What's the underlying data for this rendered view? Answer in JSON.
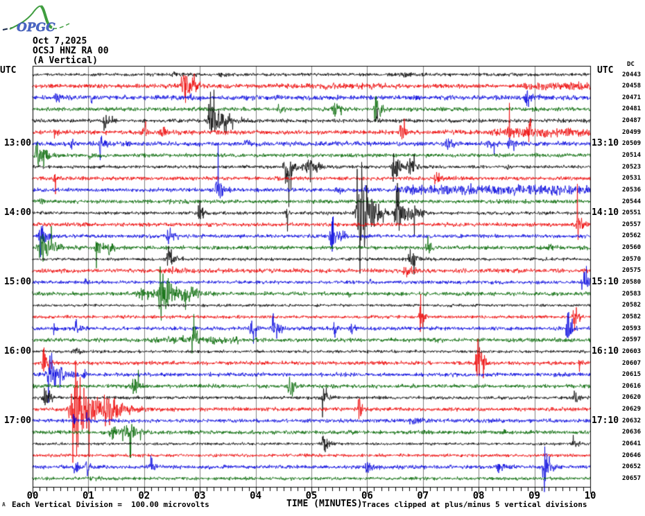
{
  "header": {
    "logo": "OPGC",
    "date": "Oct 7,2025",
    "station": "OCSJ HNZ RA 00",
    "component": "(A Vertical)"
  },
  "axis": {
    "utc_left": "UTC",
    "utc_right": "UTC",
    "dc_header": "DC",
    "xlabel": "TIME (MINUTES)",
    "x_tick_labels": [
      "00",
      "01",
      "02",
      "03",
      "04",
      "05",
      "06",
      "07",
      "08",
      "09",
      "10"
    ],
    "footer_left": "Each Vertical Division =  100.00 microvolts",
    "footer_right": "Traces clipped at plus/minus 5 vertical divisions",
    "corner_mark": "A"
  },
  "left_time_labels": [
    {
      "row": 6,
      "label": "13:00"
    },
    {
      "row": 12,
      "label": "14:00"
    },
    {
      "row": 18,
      "label": "15:00"
    },
    {
      "row": 24,
      "label": "16:00"
    },
    {
      "row": 30,
      "label": "17:00"
    }
  ],
  "right_time_labels": [
    {
      "row": 6,
      "label": "13:10"
    },
    {
      "row": 12,
      "label": "14:10"
    },
    {
      "row": 18,
      "label": "15:10"
    },
    {
      "row": 24,
      "label": "16:10"
    },
    {
      "row": 30,
      "label": "17:10"
    }
  ],
  "chart_data": {
    "type": "line",
    "subtype": "helicorder-seismogram",
    "title": "OCSJ HNZ RA 00 (A Vertical) Oct 7,2025",
    "xlabel": "TIME (MINUTES)",
    "x_range_minutes": [
      0,
      10
    ],
    "row_duration_minutes": 10,
    "minutes_per_gridline": 1,
    "minor_ticks_per_minute": 8,
    "rows_total": 36,
    "first_row_start_utc": "12:00",
    "clip_divisions": 5,
    "microvolts_per_division": 100.0,
    "colors": {
      "black": "#000000",
      "red": "#ee0000",
      "blue": "#0000dd",
      "green": "#006600",
      "grid": "#808080"
    },
    "notes": "events: t = minute of onset, a = peak amplitude (px), w = decay width (min); bands = elevated background noise spans",
    "rows": [
      {
        "start": "12:00",
        "end": "12:10",
        "color": "black",
        "dc": 20443,
        "noise": 1.4,
        "events": [
          {
            "t": 2.55,
            "a": 4,
            "w": 0.25
          },
          {
            "t": 3.4,
            "a": 3,
            "w": 0.2
          },
          {
            "t": 6.7,
            "a": 3,
            "w": 0.3
          }
        ],
        "bands": []
      },
      {
        "start": "12:10",
        "end": "12:20",
        "color": "red",
        "dc": 20458,
        "noise": 1.9,
        "events": [
          {
            "t": 2.73,
            "a": 22,
            "w": 0.15
          },
          {
            "t": 5.25,
            "a": 6,
            "w": 0.04
          }
        ],
        "bands": [
          {
            "from": 8.8,
            "to": 10,
            "amp": 2
          },
          {
            "from": 4.2,
            "to": 6.6,
            "amp": 0.7
          }
        ]
      },
      {
        "start": "12:20",
        "end": "12:30",
        "color": "blue",
        "dc": 20471,
        "noise": 2.1,
        "events": [
          {
            "t": 0.43,
            "a": 8,
            "w": 0.12
          },
          {
            "t": 1.05,
            "a": 5,
            "w": 0.1
          },
          {
            "t": 2.85,
            "a": 4,
            "w": 0.15
          },
          {
            "t": 8.86,
            "a": 11,
            "w": 0.12
          }
        ],
        "bands": []
      },
      {
        "start": "12:30",
        "end": "12:40",
        "color": "green",
        "dc": 20481,
        "noise": 1.7,
        "events": [
          {
            "t": 2.95,
            "a": 4,
            "w": 0.2
          },
          {
            "t": 4.43,
            "a": 6,
            "w": 0.08
          },
          {
            "t": 5.41,
            "a": 14,
            "w": 0.1
          },
          {
            "t": 6.16,
            "a": 20,
            "w": 0.09
          },
          {
            "t": 9.0,
            "a": 3,
            "w": 0.1
          }
        ],
        "bands": []
      },
      {
        "start": "12:40",
        "end": "12:50",
        "color": "black",
        "dc": 20487,
        "noise": 1.7,
        "events": [
          {
            "t": 1.3,
            "a": 13,
            "w": 0.1
          },
          {
            "t": 3.22,
            "a": 24,
            "w": 0.2
          },
          {
            "t": 6.18,
            "a": 7,
            "w": 0.05
          }
        ],
        "bands": []
      },
      {
        "start": "12:50",
        "end": "13:00",
        "color": "red",
        "dc": 20499,
        "noise": 1.9,
        "events": [
          {
            "t": 0.41,
            "a": 7,
            "w": 0.08
          },
          {
            "t": 2.0,
            "a": 6,
            "w": 0.1
          },
          {
            "t": 2.33,
            "a": 8,
            "w": 0.13
          },
          {
            "t": 6.6,
            "a": 18,
            "w": 0.07
          },
          {
            "t": 8.53,
            "a": 20,
            "w": 0.03
          },
          {
            "t": 8.9,
            "a": 22,
            "w": 0.04
          }
        ],
        "bands": [
          {
            "from": 8.2,
            "to": 10,
            "amp": 2.5
          }
        ]
      },
      {
        "start": "13:00",
        "end": "13:10",
        "color": "blue",
        "dc": 20509,
        "noise": 2.0,
        "events": [
          {
            "t": 0.68,
            "a": 9,
            "w": 0.07
          },
          {
            "t": 1.22,
            "a": 15,
            "w": 0.1
          },
          {
            "t": 3.8,
            "a": 6,
            "w": 0.08
          },
          {
            "t": 7.45,
            "a": 7,
            "w": 0.18
          },
          {
            "t": 8.2,
            "a": 8,
            "w": 0.12
          },
          {
            "t": 8.55,
            "a": 9,
            "w": 0.1
          }
        ],
        "bands": []
      },
      {
        "start": "13:10",
        "end": "13:20",
        "color": "green",
        "dc": 20514,
        "noise": 1.7,
        "events": [
          {
            "t": 0.1,
            "a": 24,
            "w": 0.13
          },
          {
            "t": 1.02,
            "a": 4,
            "w": 0.08
          },
          {
            "t": 5.7,
            "a": 5,
            "w": 0.08
          },
          {
            "t": 9.02,
            "a": 9,
            "w": 0.02
          }
        ],
        "bands": []
      },
      {
        "start": "13:20",
        "end": "13:30",
        "color": "black",
        "dc": 20523,
        "noise": 1.4,
        "events": [
          {
            "t": 4.55,
            "a": 28,
            "w": 0.12
          },
          {
            "t": 4.95,
            "a": 9,
            "w": 0.25
          },
          {
            "t": 6.48,
            "a": 26,
            "w": 0.1
          },
          {
            "t": 6.75,
            "a": 12,
            "w": 0.12
          },
          {
            "t": 8.52,
            "a": 5,
            "w": 0.08
          }
        ],
        "bands": []
      },
      {
        "start": "13:30",
        "end": "13:40",
        "color": "red",
        "dc": 20531,
        "noise": 1.7,
        "events": [
          {
            "t": 0.39,
            "a": 10,
            "w": 0.07
          },
          {
            "t": 7.24,
            "a": 10,
            "w": 0.12
          }
        ],
        "bands": []
      },
      {
        "start": "13:40",
        "end": "13:50",
        "color": "blue",
        "dc": 20536,
        "noise": 1.7,
        "events": [
          {
            "t": 3.32,
            "a": 17,
            "w": 0.1
          },
          {
            "t": 5.45,
            "a": 8,
            "w": 0.08
          },
          {
            "t": 5.95,
            "a": 5,
            "w": 0.08
          }
        ],
        "bands": [
          {
            "from": 6.5,
            "to": 10,
            "amp": 2.8
          }
        ]
      },
      {
        "start": "13:50",
        "end": "14:00",
        "color": "green",
        "dc": 20544,
        "noise": 1.7,
        "events": [
          {
            "t": 0.1,
            "a": 8,
            "w": 0.1
          },
          {
            "t": 2.5,
            "a": 2,
            "w": 0.5
          }
        ],
        "bands": []
      },
      {
        "start": "14:00",
        "end": "14:10",
        "color": "black",
        "dc": 20551,
        "noise": 1.5,
        "events": [
          {
            "t": 2.98,
            "a": 17,
            "w": 0.09
          },
          {
            "t": 4.56,
            "a": 11,
            "w": 0.02
          },
          {
            "t": 5.88,
            "a": 60,
            "w": 0.18
          },
          {
            "t": 6.55,
            "a": 32,
            "w": 0.12
          },
          {
            "t": 6.82,
            "a": 14,
            "w": 0.1
          }
        ],
        "bands": []
      },
      {
        "start": "14:10",
        "end": "14:20",
        "color": "red",
        "dc": 20557,
        "noise": 1.7,
        "events": [
          {
            "t": 9.78,
            "a": 20,
            "w": 0.07
          }
        ],
        "bands": []
      },
      {
        "start": "14:20",
        "end": "14:30",
        "color": "blue",
        "dc": 20562,
        "noise": 1.7,
        "events": [
          {
            "t": 0.14,
            "a": 26,
            "w": 0.09
          },
          {
            "t": 2.44,
            "a": 15,
            "w": 0.1
          },
          {
            "t": 5.37,
            "a": 26,
            "w": 0.12
          }
        ],
        "bands": []
      },
      {
        "start": "14:30",
        "end": "14:40",
        "color": "green",
        "dc": 20560,
        "noise": 1.7,
        "events": [
          {
            "t": 0.15,
            "a": 26,
            "w": 0.18
          },
          {
            "t": 1.15,
            "a": 10,
            "w": 0.1
          },
          {
            "t": 1.38,
            "a": 10,
            "w": 0.1
          },
          {
            "t": 7.07,
            "a": 15,
            "w": 0.07
          },
          {
            "t": 9.27,
            "a": 8,
            "w": 0.07
          }
        ],
        "bands": []
      },
      {
        "start": "14:40",
        "end": "14:50",
        "color": "black",
        "dc": 20570,
        "noise": 1.4,
        "events": [
          {
            "t": 2.43,
            "a": 17,
            "w": 0.09
          },
          {
            "t": 6.78,
            "a": 10,
            "w": 0.15
          }
        ],
        "bands": []
      },
      {
        "start": "14:50",
        "end": "15:00",
        "color": "red",
        "dc": 20575,
        "noise": 1.9,
        "events": [
          {
            "t": 2.55,
            "a": 4,
            "w": 0.3
          },
          {
            "t": 6.7,
            "a": 7,
            "w": 0.18
          }
        ],
        "bands": []
      },
      {
        "start": "15:00",
        "end": "15:10",
        "color": "blue",
        "dc": 20580,
        "noise": 1.5,
        "events": [
          {
            "t": 0.95,
            "a": 5,
            "w": 0.08
          },
          {
            "t": 6.05,
            "a": 5,
            "w": 0.08
          },
          {
            "t": 9.87,
            "a": 20,
            "w": 0.08
          }
        ],
        "bands": []
      },
      {
        "start": "15:10",
        "end": "15:20",
        "color": "green",
        "dc": 20583,
        "noise": 1.7,
        "events": [
          {
            "t": 1.95,
            "a": 8,
            "w": 0.25
          },
          {
            "t": 2.32,
            "a": 30,
            "w": 0.2
          },
          {
            "t": 2.75,
            "a": 10,
            "w": 0.25
          },
          {
            "t": 5.68,
            "a": 9,
            "w": 0.02
          }
        ],
        "bands": []
      },
      {
        "start": "15:20",
        "end": "15:30",
        "color": "black",
        "dc": 20582,
        "noise": 1.2,
        "events": [
          {
            "t": 3.05,
            "a": 3,
            "w": 0.05
          },
          {
            "t": 7.5,
            "a": 2.5,
            "w": 0.2
          }
        ],
        "bands": []
      },
      {
        "start": "15:30",
        "end": "15:40",
        "color": "red",
        "dc": 20582,
        "noise": 1.4,
        "events": [
          {
            "t": 6.95,
            "a": 28,
            "w": 0.05
          },
          {
            "t": 9.7,
            "a": 20,
            "w": 0.06
          }
        ],
        "bands": []
      },
      {
        "start": "15:40",
        "end": "15:50",
        "color": "blue",
        "dc": 20593,
        "noise": 1.7,
        "events": [
          {
            "t": 0.39,
            "a": 15,
            "w": 0.015
          },
          {
            "t": 0.77,
            "a": 13,
            "w": 0.08
          },
          {
            "t": 3.92,
            "a": 11,
            "w": 0.08
          },
          {
            "t": 4.31,
            "a": 13,
            "w": 0.12
          },
          {
            "t": 5.41,
            "a": 13,
            "w": 0.06
          },
          {
            "t": 5.73,
            "a": 11,
            "w": 0.06
          },
          {
            "t": 9.6,
            "a": 24,
            "w": 0.08
          }
        ],
        "bands": []
      },
      {
        "start": "15:50",
        "end": "16:00",
        "color": "green",
        "dc": 20597,
        "noise": 1.7,
        "events": [
          {
            "t": 2.88,
            "a": 28,
            "w": 0.06
          },
          {
            "t": 7.2,
            "a": 4,
            "w": 0.1
          }
        ],
        "bands": [
          {
            "from": 2.1,
            "to": 3.7,
            "amp": 1.5
          }
        ]
      },
      {
        "start": "16:00",
        "end": "16:10",
        "color": "black",
        "dc": 20603,
        "noise": 1.3,
        "events": [
          {
            "t": 0.8,
            "a": 2.5,
            "w": 0.3
          }
        ],
        "bands": []
      },
      {
        "start": "16:10",
        "end": "16:20",
        "color": "red",
        "dc": 20607,
        "noise": 1.7,
        "events": [
          {
            "t": 0.2,
            "a": 16,
            "w": 0.1
          },
          {
            "t": 7.98,
            "a": 30,
            "w": 0.1
          },
          {
            "t": 9.81,
            "a": 10,
            "w": 0.05
          }
        ],
        "bands": []
      },
      {
        "start": "16:20",
        "end": "16:30",
        "color": "blue",
        "dc": 20615,
        "noise": 1.7,
        "events": [
          {
            "t": 0.33,
            "a": 28,
            "w": 0.18
          },
          {
            "t": 0.92,
            "a": 7,
            "w": 0.04
          }
        ],
        "bands": []
      },
      {
        "start": "16:30",
        "end": "16:40",
        "color": "green",
        "dc": 20616,
        "noise": 1.7,
        "events": [
          {
            "t": 1.8,
            "a": 15,
            "w": 0.1
          },
          {
            "t": 4.6,
            "a": 15,
            "w": 0.09
          }
        ],
        "bands": []
      },
      {
        "start": "16:40",
        "end": "16:50",
        "color": "black",
        "dc": 20620,
        "noise": 1.4,
        "events": [
          {
            "t": 0.22,
            "a": 12,
            "w": 0.13
          },
          {
            "t": 5.22,
            "a": 13,
            "w": 0.09
          },
          {
            "t": 9.72,
            "a": 9,
            "w": 0.1
          }
        ],
        "bands": []
      },
      {
        "start": "16:50",
        "end": "17:00",
        "color": "red",
        "dc": 20629,
        "noise": 1.7,
        "events": [
          {
            "t": 0.78,
            "a": 65,
            "w": 0.25
          },
          {
            "t": 1.35,
            "a": 12,
            "w": 0.3
          },
          {
            "t": 5.85,
            "a": 22,
            "w": 0.05
          }
        ],
        "bands": []
      },
      {
        "start": "17:00",
        "end": "17:10",
        "color": "blue",
        "dc": 20632,
        "noise": 1.7,
        "events": [
          {
            "t": 0.73,
            "a": 11,
            "w": 0.05
          },
          {
            "t": 0.96,
            "a": 9,
            "w": 0.05
          },
          {
            "t": 6.8,
            "a": 7,
            "w": 0.18
          }
        ],
        "bands": []
      },
      {
        "start": "17:10",
        "end": "17:20",
        "color": "green",
        "dc": 20636,
        "noise": 1.7,
        "events": [
          {
            "t": 1.45,
            "a": 11,
            "w": 0.22
          },
          {
            "t": 1.75,
            "a": 9,
            "w": 0.18
          },
          {
            "t": 8.47,
            "a": 7,
            "w": 0.015
          }
        ],
        "bands": []
      },
      {
        "start": "17:20",
        "end": "17:30",
        "color": "black",
        "dc": 20641,
        "noise": 1.2,
        "events": [
          {
            "t": 5.22,
            "a": 13,
            "w": 0.1
          },
          {
            "t": 9.7,
            "a": 8,
            "w": 0.1
          }
        ],
        "bands": []
      },
      {
        "start": "17:30",
        "end": "17:40",
        "color": "red",
        "dc": 20646,
        "noise": 1.4,
        "events": [],
        "bands": []
      },
      {
        "start": "17:40",
        "end": "17:50",
        "color": "blue",
        "dc": 20652,
        "noise": 1.7,
        "events": [
          {
            "t": 0.75,
            "a": 13,
            "w": 0.07
          },
          {
            "t": 0.97,
            "a": 11,
            "w": 0.07
          },
          {
            "t": 2.12,
            "a": 13,
            "w": 0.09
          },
          {
            "t": 6.0,
            "a": 10,
            "w": 0.1
          },
          {
            "t": 8.35,
            "a": 8,
            "w": 0.13
          },
          {
            "t": 9.18,
            "a": 24,
            "w": 0.09
          }
        ],
        "bands": []
      },
      {
        "start": "17:50",
        "end": "18:00",
        "color": "green",
        "dc": 20657,
        "noise": 1.4,
        "events": [
          {
            "t": 1.0,
            "a": 3,
            "w": 0.15
          }
        ],
        "bands": []
      }
    ]
  }
}
